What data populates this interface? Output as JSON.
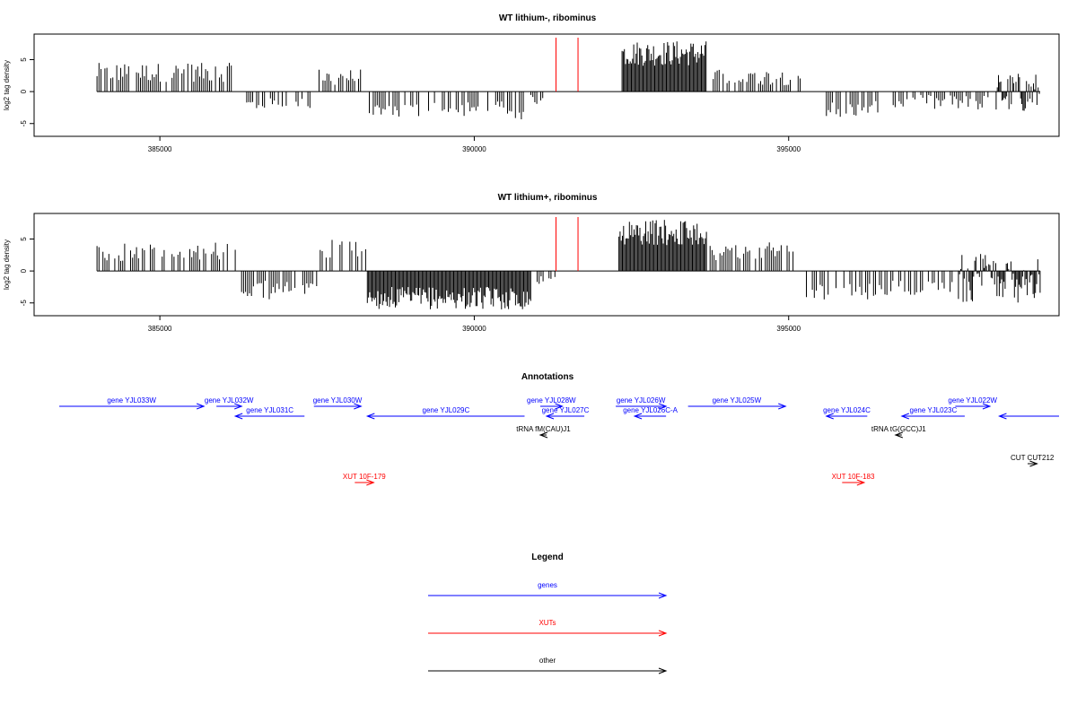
{
  "chart_data": [
    {
      "type": "bar",
      "title": "WT lithium-, ribominus",
      "ylabel": "log2 tag density",
      "xlim": [
        383000,
        399300
      ],
      "ylim": [
        -7,
        9
      ],
      "xticks": [
        385000,
        390000,
        395000
      ],
      "xtick_labels": [
        "385000",
        "390000",
        "395000"
      ],
      "yticks": [
        -5,
        0,
        5
      ],
      "ytick_labels": [
        "-5",
        "0",
        "5"
      ],
      "baseline_range": [
        384000,
        399000
      ],
      "markers_red": [
        391300,
        391650
      ],
      "segments": [
        {
          "from": 384000,
          "to": 386200,
          "min": 1.5,
          "max": 4.5
        },
        {
          "from": 386350,
          "to": 387400,
          "min": -3,
          "max": -1
        },
        {
          "from": 387500,
          "to": 388200,
          "min": 1,
          "max": 3.5
        },
        {
          "from": 388300,
          "to": 390800,
          "min": -4.5,
          "max": -1.5
        },
        {
          "from": 390900,
          "to": 391200,
          "min": -2,
          "max": -0.5
        },
        {
          "from": 392350,
          "to": 393700,
          "min": 4,
          "max": 8
        },
        {
          "from": 393800,
          "to": 395200,
          "min": 1,
          "max": 3.5
        },
        {
          "from": 395600,
          "to": 396500,
          "min": -4,
          "max": -1.5
        },
        {
          "from": 396600,
          "to": 398200,
          "min": -3,
          "max": -0.5
        },
        {
          "from": 398300,
          "to": 399000,
          "min": -3.5,
          "max": 3
        }
      ]
    },
    {
      "type": "bar",
      "title": "WT lithium+, ribominus",
      "ylabel": "log2 tag density",
      "xlim": [
        383000,
        399300
      ],
      "ylim": [
        -7,
        9
      ],
      "xticks": [
        385000,
        390000,
        395000
      ],
      "xtick_labels": [
        "385000",
        "390000",
        "395000"
      ],
      "yticks": [
        -5,
        0,
        5
      ],
      "ytick_labels": [
        "-5",
        "0",
        "5"
      ],
      "baseline_range": [
        384000,
        399000
      ],
      "markers_red": [
        391300,
        391650
      ],
      "segments": [
        {
          "from": 384000,
          "to": 386200,
          "min": 1.5,
          "max": 4.5
        },
        {
          "from": 386300,
          "to": 387500,
          "min": -4.5,
          "max": -1.5
        },
        {
          "from": 387550,
          "to": 388300,
          "min": 2,
          "max": 5
        },
        {
          "from": 388300,
          "to": 390900,
          "min": -6,
          "max": -2.5
        },
        {
          "from": 391000,
          "to": 391300,
          "min": -2,
          "max": -0.5
        },
        {
          "from": 392300,
          "to": 393700,
          "min": 4,
          "max": 8
        },
        {
          "from": 393750,
          "to": 395200,
          "min": 1.5,
          "max": 4.5
        },
        {
          "from": 395250,
          "to": 396500,
          "min": -4.5,
          "max": -2
        },
        {
          "from": 396500,
          "to": 397600,
          "min": -4,
          "max": -1.5
        },
        {
          "from": 397700,
          "to": 399000,
          "min": -5,
          "max": 3
        }
      ]
    }
  ],
  "annotations": {
    "title": "Annotations",
    "features": [
      {
        "label": "gene YJL033W",
        "x1": 383400,
        "x2": 385700,
        "row": 1,
        "dir": "right",
        "color": "#0000ff"
      },
      {
        "label": "gene YJL032W",
        "x1": 385900,
        "x2": 386300,
        "row": 1,
        "dir": "right",
        "color": "#0000ff"
      },
      {
        "label": "gene YJL031C",
        "x1": 386200,
        "x2": 387300,
        "row": 2,
        "dir": "left",
        "color": "#0000ff"
      },
      {
        "label": "gene YJL030W",
        "x1": 387450,
        "x2": 388200,
        "row": 1,
        "dir": "right",
        "color": "#0000ff"
      },
      {
        "label": "gene YJL029C",
        "x1": 388300,
        "x2": 390800,
        "row": 2,
        "dir": "left",
        "color": "#0000ff"
      },
      {
        "label": "gene YJL028W",
        "x1": 391050,
        "x2": 391400,
        "row": 1,
        "dir": "right",
        "color": "#0000ff"
      },
      {
        "label": "gene YJL027C",
        "x1": 391150,
        "x2": 391750,
        "row": 2,
        "dir": "left",
        "color": "#0000ff"
      },
      {
        "label": "gene YJL026W",
        "x1": 392250,
        "x2": 393050,
        "row": 1,
        "dir": "right",
        "color": "#0000ff"
      },
      {
        "label": "gene YJL026C-A",
        "x1": 392550,
        "x2": 393050,
        "row": 2,
        "dir": "left",
        "color": "#0000ff"
      },
      {
        "label": "gene YJL025W",
        "x1": 393400,
        "x2": 394950,
        "row": 1,
        "dir": "right",
        "color": "#0000ff"
      },
      {
        "label": "gene YJL024C",
        "x1": 395600,
        "x2": 396250,
        "row": 2,
        "dir": "left",
        "color": "#0000ff"
      },
      {
        "label": "gene YJL023C",
        "x1": 396800,
        "x2": 397800,
        "row": 2,
        "dir": "left",
        "color": "#0000ff"
      },
      {
        "label": "gene YJL022W",
        "x1": 397650,
        "x2": 398200,
        "row": 1,
        "dir": "right",
        "color": "#0000ff"
      },
      {
        "label": "",
        "x1": 398350,
        "x2": 399300,
        "row": 2,
        "dir": "left",
        "color": "#0000ff"
      },
      {
        "label": "tRNA fM(CAU)J1",
        "x1": 391050,
        "x2": 391150,
        "row": 3,
        "dir": "left",
        "color": "#000000"
      },
      {
        "label": "tRNA tG(GCC)J1",
        "x1": 396700,
        "x2": 396800,
        "row": 3,
        "dir": "left",
        "color": "#000000"
      },
      {
        "label": "CUT CUT212",
        "x1": 398800,
        "x2": 398950,
        "row": 4,
        "dir": "right",
        "color": "#000000"
      },
      {
        "label": "XUT 10F-179",
        "x1": 388100,
        "x2": 388400,
        "row": 5,
        "dir": "right",
        "color": "#ff0000"
      },
      {
        "label": "XUT 10F-183",
        "x1": 395850,
        "x2": 396200,
        "row": 5,
        "dir": "right",
        "color": "#ff0000"
      }
    ]
  },
  "legend": {
    "title": "Legend",
    "items": [
      {
        "label": "genes",
        "color": "#0000ff"
      },
      {
        "label": "XUTs",
        "color": "#ff0000"
      },
      {
        "label": "other",
        "color": "#000000"
      }
    ]
  }
}
